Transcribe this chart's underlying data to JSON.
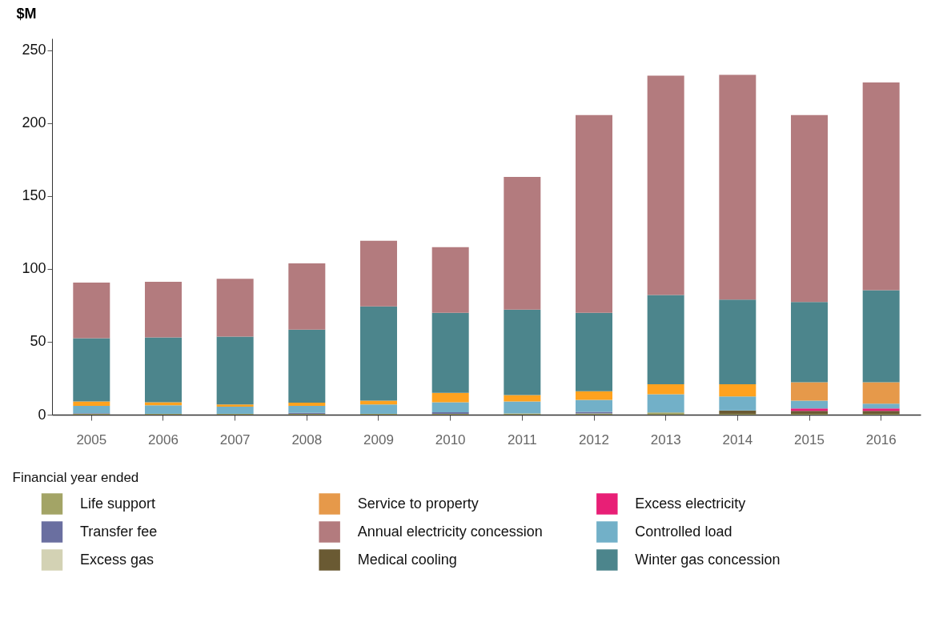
{
  "chart_data": {
    "type": "bar",
    "stacked": true,
    "ylabel": "$M",
    "xlabel": "Financial year ended",
    "categories": [
      "2005",
      "2006",
      "2007",
      "2008",
      "2009",
      "2010",
      "2011",
      "2012",
      "2013",
      "2014",
      "2015",
      "2016"
    ],
    "ylim": [
      0,
      258
    ],
    "yticks": [
      0,
      50,
      100,
      150,
      200,
      250
    ],
    "grid": false,
    "legend": "bottom",
    "series": [
      {
        "name": "Life support",
        "color": "#a3a466",
        "values": [
          0.5,
          0.5,
          0.5,
          0.5,
          0.5,
          0.5,
          0.8,
          0.8,
          1.5,
          0.5,
          0.5,
          0.5
        ]
      },
      {
        "name": "Transfer fee",
        "color": "#6a6fa0",
        "values": [
          0.5,
          0,
          0,
          0.8,
          0,
          1.2,
          0,
          1.1,
          0,
          0,
          0,
          0
        ]
      },
      {
        "name": "Excess gas",
        "color": "#d3d2b4",
        "values": [
          0,
          0,
          0,
          0,
          0,
          0,
          0,
          0,
          0,
          0,
          0,
          0
        ]
      },
      {
        "name": "Medical cooling",
        "color": "#6a5a33",
        "values": [
          0,
          0,
          0,
          0,
          0,
          0,
          0,
          0,
          0,
          2.4,
          2.1,
          2.1
        ]
      },
      {
        "name": "Excess electricity",
        "color": "#e81f76",
        "values": [
          0,
          0,
          0,
          0,
          0,
          0,
          0,
          0,
          0,
          0,
          1.7,
          1.7
        ]
      },
      {
        "name": "Controlled load",
        "color": "#72b0c8",
        "values": [
          5.0,
          5.9,
          5.0,
          4.7,
          6.5,
          6.8,
          8.3,
          8.3,
          12.5,
          9.6,
          5.3,
          3.3
        ]
      },
      {
        "name": "Service to property",
        "color": "#e6994a",
        "colors": [
          "#ffa21f",
          "#ffa21f",
          "#ffa21f",
          "#ffa21f",
          "#ffa21f",
          "#ffa21f",
          "#ffa21f",
          "#ffa21f",
          "#ffa21f",
          "#ffa21f",
          "#e6994a",
          "#e6994a"
        ],
        "values": [
          3.1,
          2.1,
          1.5,
          2.2,
          2.6,
          6.4,
          4.4,
          5.9,
          6.8,
          8.3,
          12.7,
          14.7
        ]
      },
      {
        "name": "Winter gas concession",
        "color": "#4c858c",
        "values": [
          43.3,
          44.5,
          46.5,
          50.1,
          64.6,
          55.0,
          58.5,
          53.8,
          61.3,
          58.1,
          55.0,
          63.0
        ]
      },
      {
        "name": "Annual electricity concession",
        "color": "#b37b7e",
        "values": [
          38.2,
          38.1,
          39.7,
          45.5,
          45.0,
          45.0,
          91.1,
          135.6,
          150.4,
          154.1,
          128.2,
          142.5
        ]
      }
    ]
  }
}
